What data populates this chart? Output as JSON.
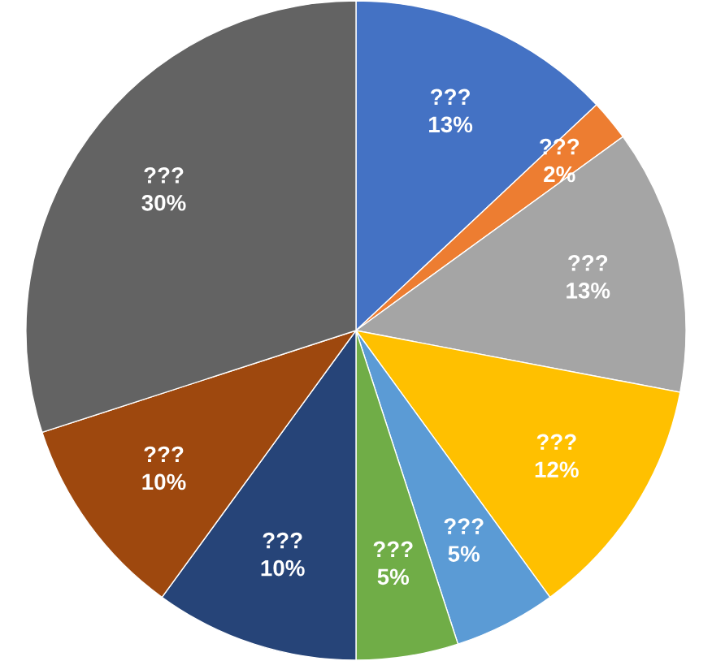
{
  "chart_data": {
    "type": "pie",
    "categories": [
      "???",
      "???",
      "???",
      "???",
      "???",
      "???",
      "???",
      "???",
      "???"
    ],
    "values": [
      13,
      2,
      13,
      12,
      5,
      5,
      10,
      10,
      30
    ],
    "value_labels": [
      "13%",
      "2%",
      "13%",
      "12%",
      "5%",
      "5%",
      "10%",
      "10%",
      "30%"
    ],
    "colors": [
      "#4472c4",
      "#ed7d31",
      "#a5a5a5",
      "#ffc000",
      "#5b9bd5",
      "#70ad47",
      "#264478",
      "#9e480e",
      "#636363"
    ],
    "legend": false
  }
}
